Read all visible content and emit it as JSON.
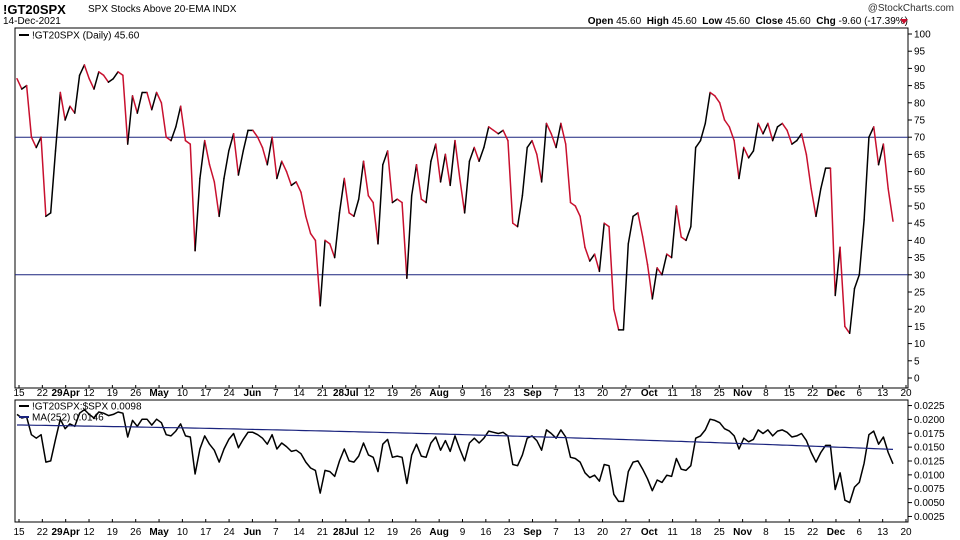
{
  "header": {
    "symbol": "!GT20SPX",
    "description": "SPX Stocks Above 20-EMA INDX",
    "date": "14-Dec-2021",
    "brand": "@StockCharts.com",
    "open_label": "Open",
    "open": "45.60",
    "high_label": "High",
    "high": "45.60",
    "low_label": "Low",
    "low": "45.60",
    "close_label": "Close",
    "close": "45.60",
    "chg_label": "Chg",
    "chg": "-9.60 (-17.39%)",
    "down_color": "#c8102e"
  },
  "chart_data": [
    {
      "type": "line",
      "legend": "!GT20SPX (Daily) 45.60",
      "ylim": [
        0,
        100
      ],
      "yticks": [
        0,
        5,
        10,
        15,
        20,
        25,
        30,
        35,
        40,
        45,
        50,
        55,
        60,
        65,
        70,
        75,
        80,
        85,
        90,
        95,
        100
      ],
      "reference_lines": [
        70,
        30
      ],
      "up_color": "#000000",
      "down_color": "#c8102e",
      "x_labels": [
        "15",
        "22",
        "29Apr",
        "12",
        "19",
        "26",
        "May",
        "10",
        "17",
        "24",
        "Jun",
        "7",
        "14",
        "21",
        "28Jul",
        "12",
        "19",
        "26",
        "Aug",
        "9",
        "16",
        "23",
        "Sep",
        "7",
        "13",
        "20",
        "27",
        "Oct",
        "11",
        "18",
        "25",
        "Nov",
        "8",
        "15",
        "22",
        "Dec",
        "6",
        "13",
        "20"
      ],
      "x_label_bold": [
        "29Apr",
        "May",
        "Jun",
        "28Jul",
        "Aug",
        "Sep",
        "Oct",
        "Nov",
        "Dec"
      ],
      "values": [
        87,
        84,
        85,
        70,
        67,
        70,
        47,
        48,
        66,
        83,
        75,
        79,
        77,
        88,
        91,
        87,
        84,
        89,
        88,
        86,
        87,
        89,
        88,
        68,
        82,
        77,
        83,
        83,
        78,
        83,
        80,
        70,
        69,
        73,
        79,
        69,
        68,
        37,
        58,
        69,
        62,
        57,
        47,
        58,
        66,
        71,
        59,
        66,
        72,
        72,
        70,
        67,
        62,
        70,
        58,
        63,
        60,
        56,
        57,
        54,
        47,
        42,
        40,
        21,
        40,
        39,
        35,
        48,
        58,
        48,
        47,
        52,
        63,
        53,
        51,
        39,
        62,
        66,
        51,
        52,
        51,
        29,
        53,
        62,
        52,
        51,
        63,
        68,
        57,
        65,
        56,
        69,
        58,
        48,
        63,
        67,
        63,
        67,
        73,
        72,
        71,
        72,
        69,
        45,
        44,
        53,
        67,
        69,
        65,
        57,
        74,
        71,
        67,
        74,
        68,
        51,
        50,
        47,
        38,
        34,
        36,
        31,
        45,
        44,
        20,
        14,
        14,
        39,
        47,
        48,
        41,
        33,
        23,
        32,
        30,
        36,
        35,
        50,
        41,
        40,
        44,
        67,
        69,
        74,
        83,
        82,
        80,
        75,
        73,
        69,
        58,
        67,
        64,
        66,
        74,
        71,
        74,
        69,
        73,
        74,
        72,
        68,
        69,
        71,
        65,
        55,
        47,
        55,
        61,
        61,
        24,
        38,
        15,
        13,
        26,
        30,
        46,
        70,
        73,
        62,
        68,
        55,
        45.6
      ]
    },
    {
      "type": "line",
      "series": [
        {
          "name": "!GT20SPX:$SPX 0.0098",
          "color": "#000000",
          "values": "derived from main series by linear scaling"
        },
        {
          "name": "MA(252) 0.0146",
          "color": "#1a237e"
        }
      ],
      "ylim": [
        0.0015,
        0.0235
      ],
      "yticks": [
        0.0025,
        0.005,
        0.0075,
        0.01,
        0.0125,
        0.015,
        0.0175,
        0.02,
        0.0225
      ],
      "ytick_labels": [
        "0.0025",
        "0.0050",
        "0.0075",
        "0.0100",
        "0.0125",
        "0.0150",
        "0.0175",
        "0.0200",
        "0.0225"
      ],
      "ratio_per_point": 0.000215,
      "ma_start": 0.019,
      "ma_end": 0.0146,
      "ref_line_color": "#1a237e"
    }
  ]
}
